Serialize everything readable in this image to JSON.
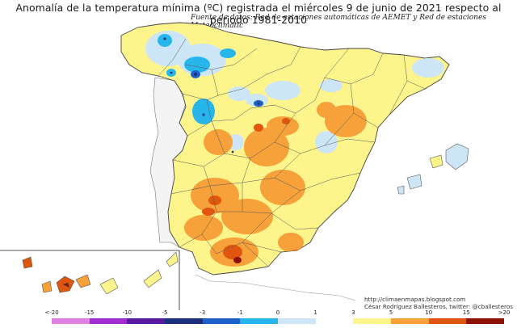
{
  "title": "Anomalía de la temperatura mínima (ºC) registrada el miércoles 9 de junio de 2021 respecto al periodo 1981-2010",
  "subtitle": "Fuente de datos: Red de estaciones automáticas de AEMET y Red de estaciones Meteoclimatic",
  "credit": {
    "url": "http://climaenmapas.blogspot.com",
    "author": "César Rodríguez Ballesteros, twitter: @cballesteros"
  },
  "legend": {
    "labels": [
      "<-20",
      "-15",
      "-10",
      "-5",
      "-3",
      "-1",
      "0",
      "1",
      "3",
      "5",
      "10",
      "15",
      ">20"
    ],
    "colors": [
      "#e07fe6",
      "#a12cd0",
      "#581a9e",
      "#1b2f7a",
      "#1c61c8",
      "#27b6ec",
      "#cde6f7",
      "#ffffff",
      "#fdf48c",
      "#f6a13a",
      "#e0560f",
      "#8c1206",
      "#6b4610"
    ]
  },
  "map": {
    "region": "Península Ibérica, Baleares y Canarias",
    "layers": [
      "anomaly-field",
      "province-boundaries",
      "coastline",
      "canary-inset"
    ]
  }
}
